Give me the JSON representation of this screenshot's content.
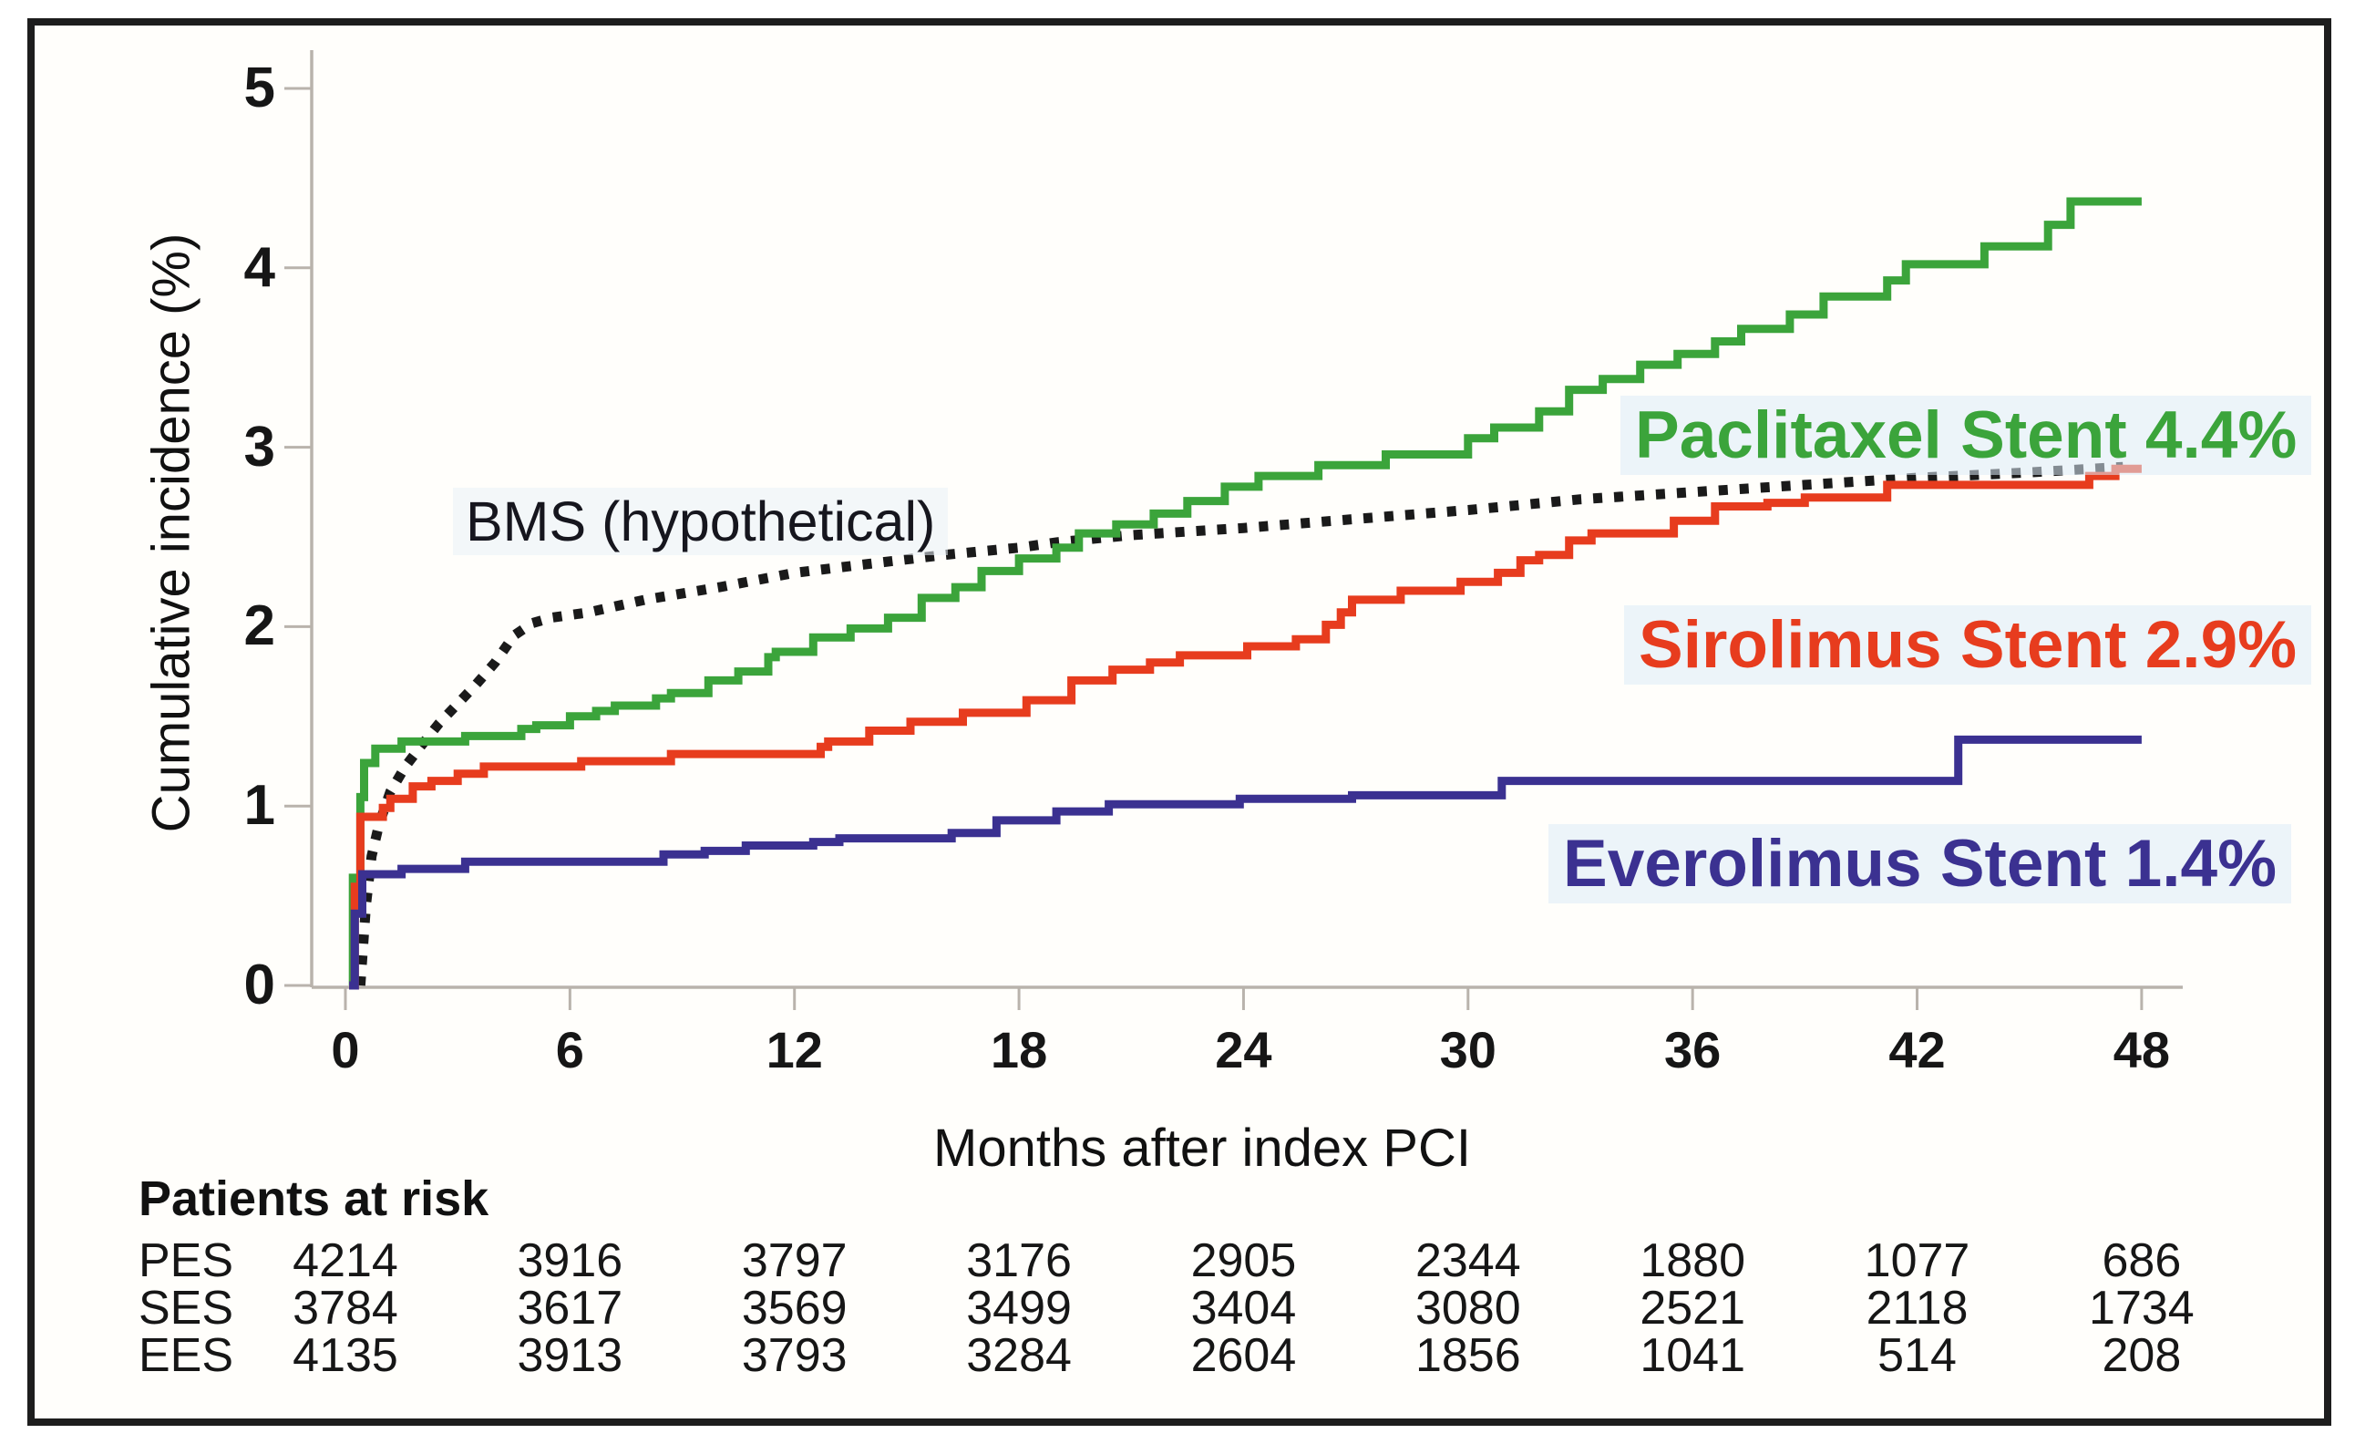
{
  "figure": {
    "y_axis_title": "Cumulative incidence (%)",
    "x_axis_title": "Months after index PCI",
    "annotations": {
      "bms": "BMS (hypothetical)",
      "paclitaxel": "Paclitaxel Stent 4.4%",
      "sirolimus": "Sirolimus Stent 2.9%",
      "everolimus": "Everolimus Stent 1.4%"
    },
    "risk_table": {
      "title": "Patients at risk",
      "timepoints": [
        0,
        6,
        12,
        18,
        24,
        30,
        36,
        42,
        48
      ],
      "rows": [
        {
          "label": "PES",
          "values": [
            4214,
            3916,
            3797,
            3176,
            2905,
            2344,
            1880,
            1077,
            686
          ]
        },
        {
          "label": "SES",
          "values": [
            3784,
            3617,
            3569,
            3499,
            3404,
            3080,
            2521,
            2118,
            1734
          ]
        },
        {
          "label": "EES",
          "values": [
            4135,
            3913,
            3793,
            3284,
            2604,
            1856,
            1041,
            514,
            208
          ]
        }
      ]
    },
    "colors": {
      "paclitaxel": "#3ba43b",
      "sirolimus": "#e73c1e",
      "everolimus": "#3b3191",
      "bms": "#1a1a1a",
      "axis": "#b9b3ac"
    }
  },
  "chart_data": {
    "type": "line",
    "title": "",
    "xlabel": "Months after index PCI",
    "ylabel": "Cumulative incidence (%)",
    "xlim": [
      0,
      48
    ],
    "ylim": [
      0,
      5
    ],
    "x_ticks": [
      0,
      6,
      12,
      18,
      24,
      30,
      36,
      42,
      48
    ],
    "y_ticks": [
      0,
      1,
      2,
      3,
      4,
      5
    ],
    "grid": false,
    "legend_position": "inline-right",
    "series": [
      {
        "name": "BMS (hypothetical)",
        "color": "#1a1a1a",
        "style": "dotted",
        "step": false,
        "end_value_pct": null,
        "points": [
          [
            0.4,
            0
          ],
          [
            0.55,
            0.45
          ],
          [
            0.7,
            0.72
          ],
          [
            0.9,
            0.9
          ],
          [
            1.2,
            1.08
          ],
          [
            1.6,
            1.22
          ],
          [
            2.0,
            1.33
          ],
          [
            2.5,
            1.46
          ],
          [
            3.0,
            1.57
          ],
          [
            3.5,
            1.68
          ],
          [
            4.0,
            1.8
          ],
          [
            4.5,
            1.95
          ],
          [
            5.0,
            2.02
          ],
          [
            5.5,
            2.05
          ],
          [
            6.5,
            2.08
          ],
          [
            8,
            2.15
          ],
          [
            10,
            2.22
          ],
          [
            12,
            2.3
          ],
          [
            14,
            2.35
          ],
          [
            16,
            2.4
          ],
          [
            18,
            2.44
          ],
          [
            19,
            2.47
          ],
          [
            21,
            2.51
          ],
          [
            24,
            2.55
          ],
          [
            27,
            2.6
          ],
          [
            30,
            2.65
          ],
          [
            33,
            2.71
          ],
          [
            36,
            2.75
          ],
          [
            39,
            2.79
          ],
          [
            42,
            2.83
          ],
          [
            45,
            2.86
          ],
          [
            47.5,
            2.89
          ]
        ]
      },
      {
        "name": "Paclitaxel Stent",
        "color": "#3ba43b",
        "style": "solid",
        "step": true,
        "end_value_pct": 4.4,
        "points": [
          [
            0.1,
            0
          ],
          [
            0.2,
            0.6
          ],
          [
            0.4,
            1.05
          ],
          [
            0.5,
            1.24
          ],
          [
            0.8,
            1.32
          ],
          [
            1.5,
            1.36
          ],
          [
            3.2,
            1.39
          ],
          [
            4.7,
            1.43
          ],
          [
            5.1,
            1.45
          ],
          [
            6.0,
            1.5
          ],
          [
            6.7,
            1.53
          ],
          [
            7.2,
            1.56
          ],
          [
            8.3,
            1.6
          ],
          [
            8.7,
            1.63
          ],
          [
            9.7,
            1.7
          ],
          [
            10.5,
            1.75
          ],
          [
            11.3,
            1.83
          ],
          [
            11.5,
            1.86
          ],
          [
            12.5,
            1.94
          ],
          [
            13.5,
            1.99
          ],
          [
            14.5,
            2.05
          ],
          [
            15.4,
            2.16
          ],
          [
            16.3,
            2.22
          ],
          [
            17.0,
            2.31
          ],
          [
            18.0,
            2.38
          ],
          [
            19.0,
            2.44
          ],
          [
            19.6,
            2.52
          ],
          [
            20.6,
            2.57
          ],
          [
            21.6,
            2.63
          ],
          [
            22.5,
            2.7
          ],
          [
            23.5,
            2.78
          ],
          [
            24.4,
            2.84
          ],
          [
            26.0,
            2.9
          ],
          [
            27.8,
            2.96
          ],
          [
            30.0,
            3.05
          ],
          [
            30.7,
            3.11
          ],
          [
            31.9,
            3.2
          ],
          [
            32.7,
            3.32
          ],
          [
            33.6,
            3.38
          ],
          [
            34.6,
            3.46
          ],
          [
            35.6,
            3.52
          ],
          [
            36.6,
            3.59
          ],
          [
            37.3,
            3.66
          ],
          [
            38.6,
            3.74
          ],
          [
            39.5,
            3.84
          ],
          [
            41.2,
            3.93
          ],
          [
            41.7,
            4.02
          ],
          [
            43.8,
            4.12
          ],
          [
            45.5,
            4.24
          ],
          [
            46.1,
            4.37
          ],
          [
            48,
            4.37
          ]
        ]
      },
      {
        "name": "Sirolimus Stent",
        "color": "#e73c1e",
        "style": "solid",
        "step": true,
        "end_value_pct": 2.9,
        "points": [
          [
            0.1,
            0
          ],
          [
            0.25,
            0.55
          ],
          [
            0.4,
            0.94
          ],
          [
            1.0,
            0.99
          ],
          [
            1.2,
            1.04
          ],
          [
            1.8,
            1.11
          ],
          [
            2.3,
            1.14
          ],
          [
            3.0,
            1.18
          ],
          [
            3.7,
            1.22
          ],
          [
            6.3,
            1.25
          ],
          [
            8.7,
            1.29
          ],
          [
            12.7,
            1.33
          ],
          [
            12.9,
            1.36
          ],
          [
            14.0,
            1.42
          ],
          [
            15.1,
            1.47
          ],
          [
            16.5,
            1.52
          ],
          [
            18.2,
            1.59
          ],
          [
            19.4,
            1.7
          ],
          [
            20.5,
            1.76
          ],
          [
            21.5,
            1.8
          ],
          [
            22.3,
            1.84
          ],
          [
            24.1,
            1.89
          ],
          [
            25.4,
            1.93
          ],
          [
            26.2,
            2.01
          ],
          [
            26.6,
            2.08
          ],
          [
            26.9,
            2.15
          ],
          [
            28.2,
            2.2
          ],
          [
            29.8,
            2.25
          ],
          [
            30.8,
            2.3
          ],
          [
            31.4,
            2.37
          ],
          [
            31.9,
            2.4
          ],
          [
            32.7,
            2.48
          ],
          [
            33.3,
            2.52
          ],
          [
            35.5,
            2.59
          ],
          [
            36.6,
            2.67
          ],
          [
            38.0,
            2.69
          ],
          [
            39.0,
            2.72
          ],
          [
            41.2,
            2.79
          ],
          [
            46.6,
            2.84
          ],
          [
            47.3,
            2.88
          ],
          [
            48,
            2.88
          ]
        ]
      },
      {
        "name": "Everolimus Stent",
        "color": "#3b3191",
        "style": "solid",
        "step": true,
        "end_value_pct": 1.4,
        "points": [
          [
            0.1,
            0
          ],
          [
            0.25,
            0.4
          ],
          [
            0.45,
            0.62
          ],
          [
            1.5,
            0.65
          ],
          [
            3.2,
            0.69
          ],
          [
            8.5,
            0.73
          ],
          [
            9.6,
            0.75
          ],
          [
            10.7,
            0.78
          ],
          [
            12.5,
            0.8
          ],
          [
            13.2,
            0.82
          ],
          [
            16.2,
            0.85
          ],
          [
            17.4,
            0.92
          ],
          [
            19.0,
            0.97
          ],
          [
            20.4,
            1.01
          ],
          [
            23.9,
            1.04
          ],
          [
            26.9,
            1.06
          ],
          [
            30.9,
            1.14
          ],
          [
            43.1,
            1.37
          ],
          [
            48,
            1.37
          ]
        ]
      }
    ]
  }
}
